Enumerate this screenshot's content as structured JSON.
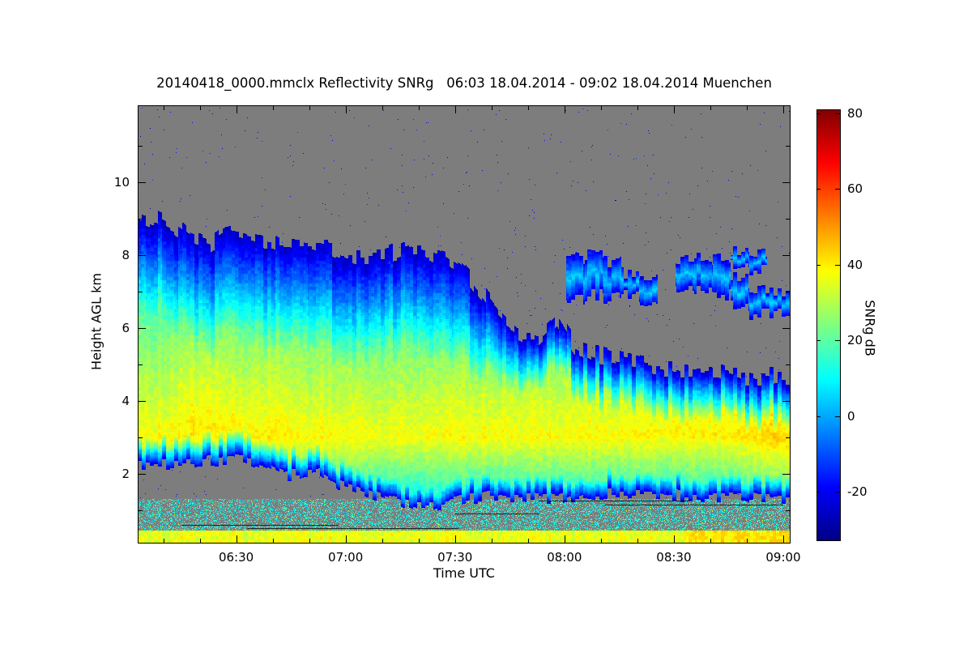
{
  "chart_data": {
    "type": "heatmap",
    "title": "20140418_0000.mmclx Reflectivity SNRg   06:03 18.04.2014 - 09:02 18.04.2014 Muenchen",
    "meta": {
      "file": "20140418_0000.mmclx",
      "quantity": "Reflectivity SNRg",
      "start": "06:03 18.04.2014",
      "end": "09:02 18.04.2014",
      "site": "Muenchen"
    },
    "x_axis": {
      "label": "Time UTC",
      "start_label": "06:03",
      "end_label": "09:02",
      "duration_min": 179,
      "ticks": [
        {
          "t_min": 27,
          "label": "06:30"
        },
        {
          "t_min": 57,
          "label": "07:00"
        },
        {
          "t_min": 87,
          "label": "07:30"
        },
        {
          "t_min": 117,
          "label": "08:00"
        },
        {
          "t_min": 147,
          "label": "08:30"
        },
        {
          "t_min": 177,
          "label": "09:00"
        }
      ],
      "minor_ticks_min": [
        7,
        17,
        37,
        47,
        67,
        77,
        97,
        107,
        127,
        137,
        157,
        167
      ]
    },
    "y_axis": {
      "label": "Height AGL km",
      "min_km": 0.1,
      "max_km": 12.1,
      "major_ticks": [
        2,
        4,
        6,
        8,
        10
      ],
      "minor_ticks": [
        1,
        3,
        5,
        7,
        9,
        11
      ]
    },
    "colorbar": {
      "label": "SNRg dB",
      "min_db": -33,
      "max_db": 81,
      "ticks": [
        80,
        60,
        40,
        20,
        0,
        -20
      ]
    },
    "colormap": {
      "name": "jet",
      "stops": [
        [
          0.0,
          [
            0,
            0,
            131
          ]
        ],
        [
          0.125,
          [
            0,
            0,
            255
          ]
        ],
        [
          0.375,
          [
            0,
            255,
            255
          ]
        ],
        [
          0.625,
          [
            255,
            255,
            0
          ]
        ],
        [
          0.875,
          [
            255,
            0,
            0
          ]
        ],
        [
          1.0,
          [
            128,
            0,
            0
          ]
        ]
      ]
    },
    "no_data_color_rgb": [
      125,
      125,
      125
    ],
    "model": {
      "above_center_slope_db_per_km": 5.2,
      "below_center_slope_db_per_km": 16,
      "bottom_edge_slope_db_per_km": 85,
      "top_edge_base_db": -26,
      "bottom_edge_base_db": -22,
      "patch_amp_db": 26,
      "patch_base_db": -22,
      "noise_db": 6
    },
    "columns_format": "[minutes_after_0603, cloud_top_km, cloud_base_km, band_center_km, band_peak_db, top_edge_slope_db_per_km, detached_patches_km[[lo,hi]...]]",
    "columns": [
      [
        0,
        9.1,
        2.25,
        3.0,
        38,
        18,
        []
      ],
      [
        5,
        9.0,
        2.25,
        3.0,
        38,
        18,
        []
      ],
      [
        10,
        8.8,
        2.3,
        3.0,
        39,
        18,
        []
      ],
      [
        15,
        8.45,
        2.3,
        3.1,
        41,
        18,
        []
      ],
      [
        20,
        8.3,
        2.35,
        3.2,
        41,
        18,
        []
      ],
      [
        25,
        8.6,
        2.4,
        3.1,
        40,
        18,
        []
      ],
      [
        30,
        8.5,
        2.35,
        3.0,
        39,
        18,
        []
      ],
      [
        35,
        8.4,
        2.2,
        3.0,
        40,
        18,
        []
      ],
      [
        40,
        8.3,
        1.95,
        3.0,
        39,
        18,
        []
      ],
      [
        45,
        8.25,
        2.0,
        3.0,
        38,
        18,
        []
      ],
      [
        50,
        8.2,
        2.05,
        3.0,
        38,
        18,
        []
      ],
      [
        55,
        8.1,
        1.7,
        3.0,
        38,
        18,
        []
      ],
      [
        60,
        8.0,
        1.55,
        3.0,
        38,
        18,
        []
      ],
      [
        65,
        8.0,
        1.4,
        3.0,
        37,
        18,
        []
      ],
      [
        70,
        8.05,
        1.25,
        3.0,
        37,
        18,
        []
      ],
      [
        75,
        8.2,
        1.15,
        3.0,
        37,
        18,
        []
      ],
      [
        80,
        8.1,
        1.1,
        3.0,
        37,
        18,
        []
      ],
      [
        85,
        7.9,
        1.2,
        3.0,
        38,
        18,
        []
      ],
      [
        90,
        7.5,
        1.3,
        3.0,
        38,
        20,
        []
      ],
      [
        95,
        6.9,
        1.35,
        3.0,
        38,
        24,
        []
      ],
      [
        100,
        6.3,
        1.4,
        3.0,
        38,
        30,
        []
      ],
      [
        105,
        5.9,
        1.4,
        3.0,
        38,
        38,
        []
      ],
      [
        110,
        5.8,
        1.35,
        3.0,
        38,
        42,
        []
      ],
      [
        115,
        6.3,
        1.3,
        3.0,
        38,
        42,
        []
      ],
      [
        120,
        5.5,
        1.4,
        3.0,
        38,
        45,
        [
          [
            6.8,
            7.9
          ]
        ]
      ],
      [
        125,
        5.3,
        1.45,
        3.0,
        38,
        45,
        [
          [
            6.9,
            8.0
          ]
        ]
      ],
      [
        130,
        5.2,
        1.45,
        3.0,
        38,
        45,
        [
          [
            6.8,
            7.8
          ]
        ]
      ],
      [
        135,
        5.1,
        1.5,
        3.05,
        39,
        45,
        [
          [
            6.9,
            7.5
          ]
        ]
      ],
      [
        140,
        5.0,
        1.5,
        3.05,
        39,
        45,
        [
          [
            6.6,
            7.3
          ]
        ]
      ],
      [
        145,
        4.9,
        1.45,
        3.1,
        39,
        48,
        []
      ],
      [
        150,
        4.85,
        1.4,
        3.1,
        40,
        48,
        [
          [
            7.1,
            7.9
          ]
        ]
      ],
      [
        155,
        4.8,
        1.4,
        3.1,
        40,
        48,
        [
          [
            7.0,
            8.0
          ]
        ]
      ],
      [
        160,
        4.75,
        1.4,
        3.1,
        40,
        50,
        [
          [
            6.9,
            7.9
          ]
        ]
      ],
      [
        165,
        4.7,
        1.4,
        3.1,
        41,
        50,
        [
          [
            6.6,
            7.4
          ],
          [
            7.7,
            8.1
          ]
        ]
      ],
      [
        170,
        4.65,
        1.35,
        3.0,
        42,
        50,
        [
          [
            6.4,
            7.0
          ],
          [
            7.6,
            8.0
          ]
        ]
      ],
      [
        175,
        4.7,
        1.3,
        3.0,
        43,
        50,
        [
          [
            6.4,
            7.0
          ]
        ]
      ]
    ],
    "clutter": {
      "surface_stripe_top_km": 0.45,
      "surface_stripe_db": 36,
      "speckle_top_km": 1.32,
      "speckle_density": 0.3,
      "speckle_db_range": [
        4,
        20
      ]
    },
    "overlay_segments_t0_t1_h": [
      [
        12,
        55,
        0.62
      ],
      [
        30,
        88,
        0.52
      ],
      [
        87,
        110,
        0.92
      ],
      [
        110,
        152,
        1.28
      ],
      [
        128,
        177,
        1.16
      ]
    ]
  }
}
